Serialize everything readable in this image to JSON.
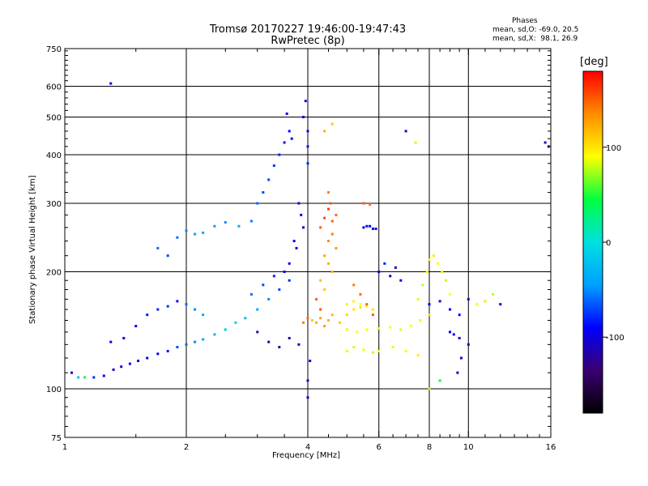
{
  "chart_data": {
    "type": "scatter",
    "title": "Tromsø 20170227 19:46:00-19:47:43",
    "subtitle": "RwPretec (8p)",
    "xlabel": "Frequency [MHz]",
    "ylabel": "Stationary phase Virtual Height [km]",
    "x_scale": "log",
    "y_scale": "log",
    "xlim": [
      1,
      16
    ],
    "ylim": [
      75,
      750
    ],
    "x_ticks": [
      1,
      2,
      4,
      6,
      8,
      10,
      16
    ],
    "y_ticks": [
      75,
      100,
      200,
      300,
      400,
      500,
      600,
      750
    ],
    "grid": true,
    "legend": {
      "title": "Phases",
      "lines": [
        "mean, sd,O: -69.0, 20.5",
        "mean, sd,X:  98.1, 26.9"
      ]
    },
    "colorbar": {
      "label": "[deg]",
      "range": [
        -180,
        180
      ],
      "ticks": [
        100,
        0,
        -100
      ],
      "colors": [
        "#000000",
        "#3a0070",
        "#0000ff",
        "#00a0ff",
        "#00e0e0",
        "#00ff40",
        "#ffff00",
        "#ff8c00",
        "#ff0000"
      ]
    },
    "series": [
      {
        "points": [
          [
            1.04,
            110,
            -110
          ],
          [
            1.08,
            107,
            -20
          ],
          [
            1.12,
            107,
            40
          ],
          [
            1.18,
            107,
            -80
          ],
          [
            1.25,
            108,
            -90
          ],
          [
            1.3,
            610,
            -100
          ],
          [
            1.32,
            112,
            -100
          ],
          [
            1.38,
            114,
            -95
          ],
          [
            1.45,
            116,
            -90
          ],
          [
            1.52,
            118,
            -95
          ],
          [
            1.6,
            120,
            -100
          ],
          [
            1.7,
            123,
            -90
          ],
          [
            1.8,
            125,
            -85
          ],
          [
            1.9,
            128,
            -70
          ],
          [
            2.0,
            130,
            -60
          ],
          [
            2.1,
            132,
            -50
          ],
          [
            2.2,
            134,
            -40
          ],
          [
            2.35,
            138,
            -30
          ],
          [
            2.5,
            142,
            -20
          ],
          [
            2.65,
            148,
            -10
          ],
          [
            2.8,
            152,
            -30
          ],
          [
            3.0,
            160,
            -40
          ],
          [
            3.2,
            170,
            -50
          ],
          [
            3.4,
            180,
            -70
          ],
          [
            3.6,
            190,
            -80
          ],
          [
            1.3,
            132,
            -90
          ],
          [
            1.4,
            135,
            -95
          ],
          [
            1.5,
            145,
            -90
          ],
          [
            1.6,
            155,
            -85
          ],
          [
            1.7,
            160,
            -80
          ],
          [
            1.8,
            163,
            -75
          ],
          [
            1.9,
            168,
            -90
          ],
          [
            2.0,
            165,
            -60
          ],
          [
            2.1,
            160,
            -50
          ],
          [
            2.2,
            155,
            -40
          ],
          [
            1.7,
            230,
            -60
          ],
          [
            1.8,
            220,
            -70
          ],
          [
            1.9,
            245,
            -60
          ],
          [
            2.0,
            255,
            -50
          ],
          [
            2.1,
            250,
            -40
          ],
          [
            2.2,
            252,
            -40
          ],
          [
            2.35,
            262,
            -45
          ],
          [
            2.5,
            268,
            -50
          ],
          [
            2.7,
            262,
            -40
          ],
          [
            2.9,
            270,
            -55
          ],
          [
            3.0,
            300,
            -60
          ],
          [
            3.1,
            320,
            -70
          ],
          [
            3.2,
            345,
            -70
          ],
          [
            3.3,
            375,
            -75
          ],
          [
            3.4,
            400,
            -80
          ],
          [
            3.5,
            430,
            -85
          ],
          [
            3.6,
            460,
            -90
          ],
          [
            3.55,
            510,
            -100
          ],
          [
            3.65,
            440,
            -95
          ],
          [
            3.9,
            500,
            -95
          ],
          [
            3.95,
            550,
            -100
          ],
          [
            4.0,
            460,
            -90
          ],
          [
            4.0,
            420,
            -85
          ],
          [
            4.0,
            380,
            -80
          ],
          [
            3.8,
            300,
            -90
          ],
          [
            3.85,
            280,
            -95
          ],
          [
            3.9,
            260,
            -100
          ],
          [
            3.7,
            240,
            -110
          ],
          [
            3.75,
            230,
            -105
          ],
          [
            3.6,
            210,
            -100
          ],
          [
            3.5,
            200,
            -90
          ],
          [
            3.3,
            195,
            -80
          ],
          [
            3.1,
            185,
            -70
          ],
          [
            2.9,
            175,
            -60
          ],
          [
            3.0,
            140,
            -110
          ],
          [
            3.2,
            132,
            -110
          ],
          [
            3.4,
            128,
            -120
          ],
          [
            3.6,
            135,
            -115
          ],
          [
            3.8,
            130,
            -110
          ],
          [
            4.0,
            95,
            -110
          ],
          [
            4.0,
            105,
            -105
          ],
          [
            4.05,
            118,
            -100
          ],
          [
            4.1,
            150,
            110
          ],
          [
            4.2,
            148,
            120
          ],
          [
            4.3,
            152,
            125
          ],
          [
            4.4,
            145,
            130
          ],
          [
            4.5,
            150,
            120
          ],
          [
            4.6,
            155,
            115
          ],
          [
            4.8,
            148,
            110
          ],
          [
            5.0,
            155,
            105
          ],
          [
            5.2,
            160,
            100
          ],
          [
            5.4,
            162,
            100
          ],
          [
            4.3,
            260,
            150
          ],
          [
            4.4,
            275,
            155
          ],
          [
            4.5,
            290,
            160
          ],
          [
            4.6,
            270,
            150
          ],
          [
            4.7,
            280,
            145
          ],
          [
            4.5,
            320,
            140
          ],
          [
            4.55,
            300,
            150
          ],
          [
            4.6,
            250,
            140
          ],
          [
            4.5,
            240,
            135
          ],
          [
            4.7,
            230,
            130
          ],
          [
            4.4,
            220,
            125
          ],
          [
            4.5,
            210,
            120
          ],
          [
            4.6,
            200,
            118
          ],
          [
            4.3,
            190,
            115
          ],
          [
            4.4,
            180,
            112
          ],
          [
            4.4,
            460,
            120
          ],
          [
            4.6,
            480,
            110
          ],
          [
            5.0,
            165,
            95
          ],
          [
            5.2,
            168,
            95
          ],
          [
            5.4,
            165,
            90
          ],
          [
            5.6,
            163,
            95
          ],
          [
            5.8,
            160,
            100
          ],
          [
            5.0,
            142,
            95
          ],
          [
            5.3,
            140,
            90
          ],
          [
            5.6,
            142,
            92
          ],
          [
            6.0,
            143,
            88
          ],
          [
            6.4,
            144,
            90
          ],
          [
            6.8,
            142,
            85
          ],
          [
            7.2,
            145,
            90
          ],
          [
            7.6,
            150,
            95
          ],
          [
            8.0,
            155,
            100
          ],
          [
            5.0,
            125,
            85
          ],
          [
            5.2,
            128,
            82
          ],
          [
            5.5,
            126,
            88
          ],
          [
            5.8,
            124,
            80
          ],
          [
            5.5,
            260,
            -100
          ],
          [
            5.6,
            262,
            -95
          ],
          [
            5.7,
            262,
            -90
          ],
          [
            5.8,
            258,
            -100
          ],
          [
            5.9,
            258,
            -95
          ],
          [
            5.5,
            300,
            150
          ],
          [
            5.7,
            298,
            145
          ],
          [
            6.0,
            200,
            -90
          ],
          [
            6.2,
            210,
            -80
          ],
          [
            6.4,
            195,
            -100
          ],
          [
            6.6,
            205,
            -110
          ],
          [
            6.8,
            190,
            -90
          ],
          [
            7.0,
            460,
            -110
          ],
          [
            7.4,
            430,
            100
          ],
          [
            7.5,
            170,
            85
          ],
          [
            7.7,
            185,
            80
          ],
          [
            7.9,
            200,
            90
          ],
          [
            8.0,
            215,
            95
          ],
          [
            8.2,
            220,
            100
          ],
          [
            8.4,
            210,
            90
          ],
          [
            8.6,
            200,
            85
          ],
          [
            8.8,
            190,
            80
          ],
          [
            9.0,
            175,
            90
          ],
          [
            8.0,
            165,
            -100
          ],
          [
            8.5,
            168,
            -110
          ],
          [
            9.0,
            160,
            -95
          ],
          [
            9.5,
            155,
            -90
          ],
          [
            9.0,
            140,
            -100
          ],
          [
            9.2,
            138,
            -95
          ],
          [
            9.5,
            135,
            -90
          ],
          [
            10.0,
            130,
            -100
          ],
          [
            10.0,
            170,
            -110
          ],
          [
            10.5,
            165,
            90
          ],
          [
            11.0,
            168,
            100
          ],
          [
            11.5,
            175,
            80
          ],
          [
            12.0,
            165,
            -100
          ],
          [
            9.6,
            120,
            -100
          ],
          [
            9.4,
            110,
            -110
          ],
          [
            8.5,
            105,
            40
          ],
          [
            8.0,
            100,
            80
          ],
          [
            15.5,
            430,
            -110
          ],
          [
            15.8,
            420,
            -100
          ],
          [
            6.0,
            125,
            90
          ],
          [
            6.5,
            128,
            95
          ],
          [
            7.0,
            125,
            92
          ],
          [
            7.5,
            122,
            95
          ],
          [
            5.2,
            185,
            140
          ],
          [
            5.4,
            175,
            145
          ],
          [
            5.6,
            165,
            148
          ],
          [
            5.8,
            155,
            150
          ],
          [
            4.2,
            170,
            150
          ],
          [
            4.3,
            160,
            155
          ],
          [
            4.0,
            152,
            145
          ],
          [
            3.9,
            148,
            140
          ]
        ]
      }
    ]
  }
}
